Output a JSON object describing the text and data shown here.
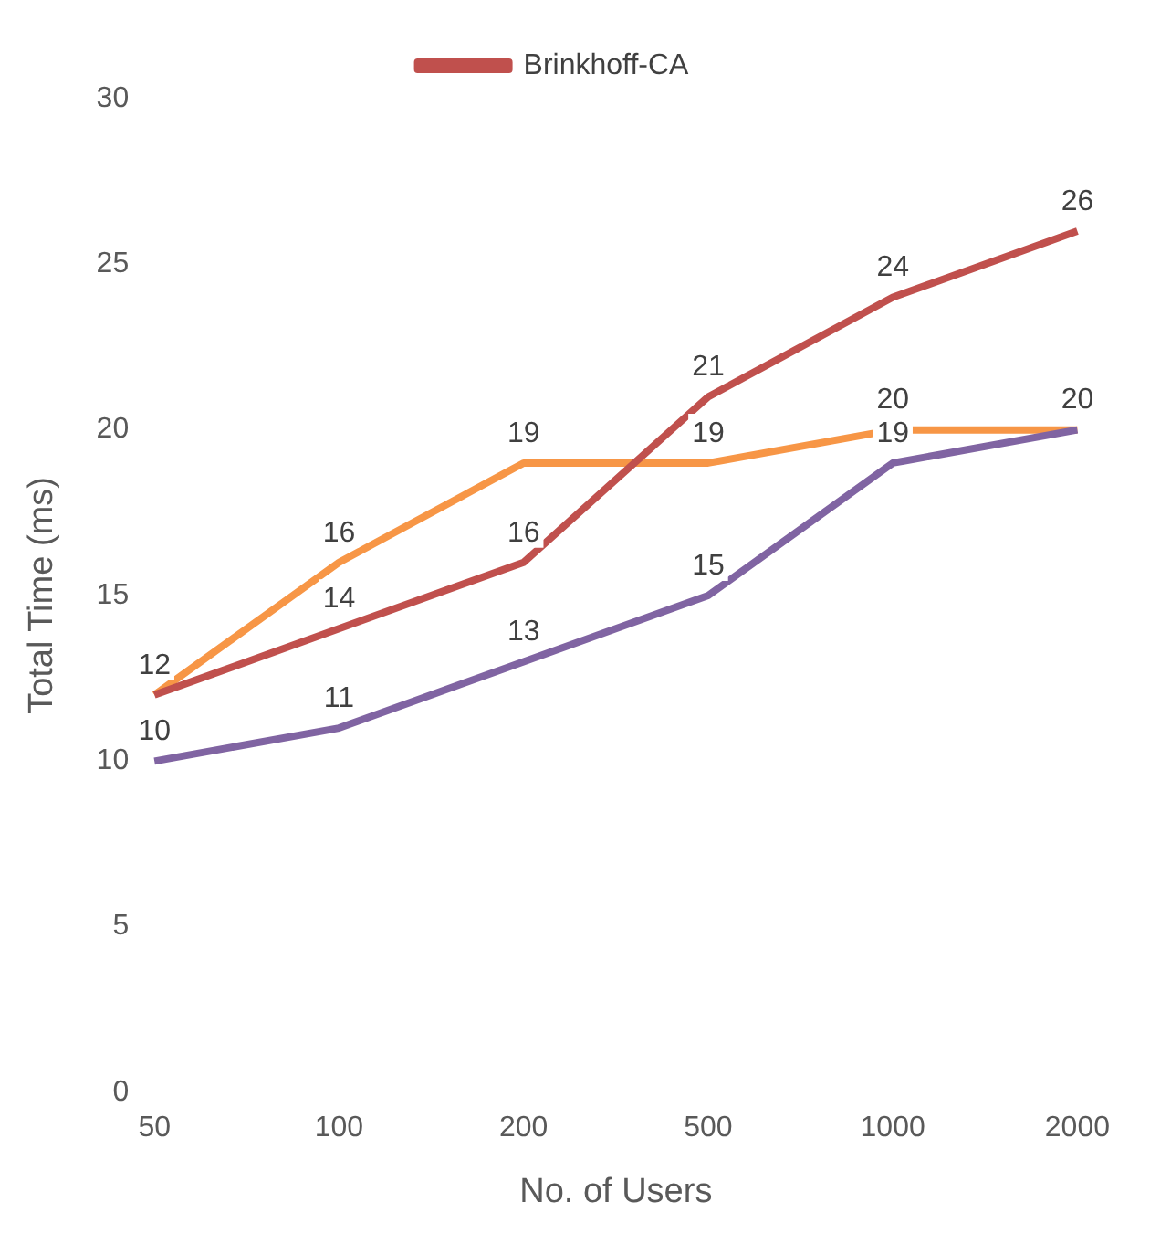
{
  "chart_data": {
    "type": "line",
    "xlabel": "No. of Users",
    "ylabel": "Total Time (ms)",
    "categories": [
      "50",
      "100",
      "200",
      "500",
      "1000",
      "2000"
    ],
    "series": [
      {
        "name": "Brinkhoff-CA",
        "color": "#c0504d",
        "values": [
          12,
          14,
          16,
          21,
          24,
          26
        ],
        "value_labels": [
          "12",
          "14",
          "16",
          "21",
          "24",
          "26"
        ]
      },
      {
        "color": "#8064a2",
        "values": [
          10,
          11,
          13,
          15,
          19,
          20
        ],
        "value_labels": [
          "10",
          "11",
          "13",
          "15",
          "19",
          "20"
        ]
      },
      {
        "color": "#f79646",
        "values": [
          12,
          16,
          19,
          19,
          20,
          20
        ],
        "value_labels": [
          null,
          "16",
          "19",
          "19",
          "20",
          null
        ]
      }
    ],
    "ylim": [
      0,
      30
    ],
    "yticks": [
      0,
      5,
      10,
      15,
      20,
      25,
      30
    ],
    "grid": false,
    "legend": "top",
    "marker": "none",
    "line_style": "solid"
  }
}
